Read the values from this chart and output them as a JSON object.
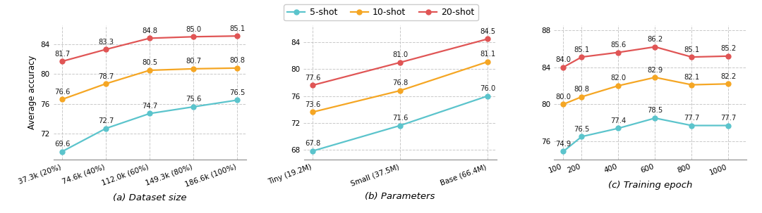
{
  "plot_a": {
    "xlabel_title": "(a) Dataset size",
    "ylabel": "Average accuracy",
    "xtick_labels": [
      "37.3k (20%)",
      "74.6k (40%)",
      "112.0k (60%)",
      "149.3k (80%)",
      "186.6k (100%)"
    ],
    "ylim": [
      68.5,
      86.5
    ],
    "yticks": [
      72,
      76,
      80,
      84
    ],
    "series": {
      "5-shot": {
        "color": "#5BC4CC",
        "values": [
          69.6,
          72.7,
          74.7,
          75.6,
          76.5
        ]
      },
      "10-shot": {
        "color": "#F5A623",
        "values": [
          76.6,
          78.7,
          80.5,
          80.7,
          80.8
        ]
      },
      "20-shot": {
        "color": "#E05555",
        "values": [
          81.7,
          83.3,
          84.8,
          85.0,
          85.1
        ]
      }
    }
  },
  "plot_b": {
    "xlabel_title": "(b) Parameters",
    "xtick_labels": [
      "Tiny (19.2M)",
      "Small (37.5M)",
      "Base (66.4M)"
    ],
    "ylim": [
      66.5,
      86.5
    ],
    "yticks": [
      68,
      72,
      76,
      80,
      84
    ],
    "series": {
      "5-shot": {
        "color": "#5BC4CC",
        "values": [
          67.8,
          71.6,
          76.0
        ]
      },
      "10-shot": {
        "color": "#F5A623",
        "values": [
          73.6,
          76.8,
          81.1
        ]
      },
      "20-shot": {
        "color": "#E05555",
        "values": [
          77.6,
          81.0,
          84.5
        ]
      }
    }
  },
  "plot_c": {
    "xlabel_title": "(c) Training epoch",
    "xtick_labels": [
      "100",
      "200",
      "400",
      "600",
      "800",
      "1000"
    ],
    "xtick_values": [
      100,
      200,
      400,
      600,
      800,
      1000
    ],
    "xlim": [
      50,
      1100
    ],
    "ylim": [
      74.0,
      88.5
    ],
    "yticks": [
      76,
      80,
      84,
      88
    ],
    "series": {
      "5-shot": {
        "color": "#5BC4CC",
        "values": [
          74.9,
          76.5,
          77.4,
          78.5,
          77.7,
          77.7
        ]
      },
      "10-shot": {
        "color": "#F5A623",
        "values": [
          80.0,
          80.8,
          82.0,
          82.9,
          82.1,
          82.2
        ]
      },
      "20-shot": {
        "color": "#E05555",
        "values": [
          84.0,
          85.1,
          85.6,
          86.2,
          85.1,
          85.2
        ]
      }
    }
  },
  "legend_labels": [
    "5-shot",
    "10-shot",
    "20-shot"
  ],
  "legend_colors": [
    "#5BC4CC",
    "#F5A623",
    "#E05555"
  ],
  "marker": "o",
  "markersize": 5,
  "linewidth": 1.6,
  "grid_color": "#BBBBBB",
  "bg_color": "#FFFFFF",
  "label_fontsize": 7.2,
  "tick_fontsize": 7.5,
  "axis_ylabel_fontsize": 8.5,
  "axis_xlabel_fontsize": 9.5,
  "legend_fontsize": 9
}
